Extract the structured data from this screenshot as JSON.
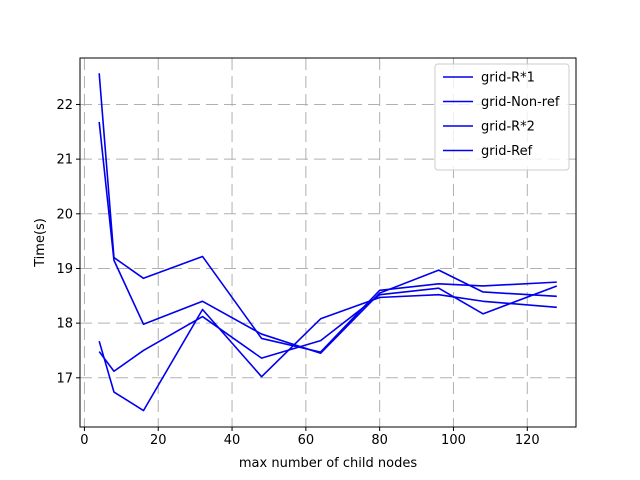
{
  "chart_data": {
    "type": "line",
    "title": "",
    "xlabel": "max number of child nodes",
    "ylabel": "Time(s)",
    "xlim": [
      -1.2,
      133.2
    ],
    "ylim": [
      16.1,
      22.85
    ],
    "xticks": [
      0,
      20,
      40,
      60,
      80,
      100,
      120
    ],
    "yticks": [
      17,
      18,
      19,
      20,
      21,
      22
    ],
    "grid": true,
    "legend_position": "top-right",
    "line_color": "#0000ee",
    "series": [
      {
        "name": "grid-R*1",
        "x": [
          4,
          8,
          16,
          32,
          48,
          64,
          80,
          96,
          108,
          128
        ],
        "y": [
          22.57,
          19.2,
          18.82,
          19.22,
          17.72,
          17.47,
          18.6,
          18.72,
          18.68,
          18.75
        ]
      },
      {
        "name": "grid-Non-ref",
        "x": [
          4,
          8,
          16,
          32,
          48,
          64,
          80,
          96,
          108,
          128
        ],
        "y": [
          21.68,
          19.15,
          17.98,
          18.4,
          17.8,
          17.45,
          18.55,
          18.97,
          18.57,
          18.49
        ]
      },
      {
        "name": "grid-R*2",
        "x": [
          4,
          8,
          16,
          32,
          48,
          64,
          80,
          96,
          108,
          128
        ],
        "y": [
          17.67,
          16.74,
          16.4,
          18.25,
          17.02,
          18.08,
          18.47,
          18.52,
          18.4,
          18.29
        ]
      },
      {
        "name": "grid-Ref",
        "x": [
          4,
          8,
          16,
          32,
          48,
          64,
          80,
          96,
          108,
          128
        ],
        "y": [
          17.48,
          17.12,
          17.5,
          18.12,
          17.36,
          17.68,
          18.52,
          18.64,
          18.17,
          18.68
        ]
      }
    ]
  }
}
